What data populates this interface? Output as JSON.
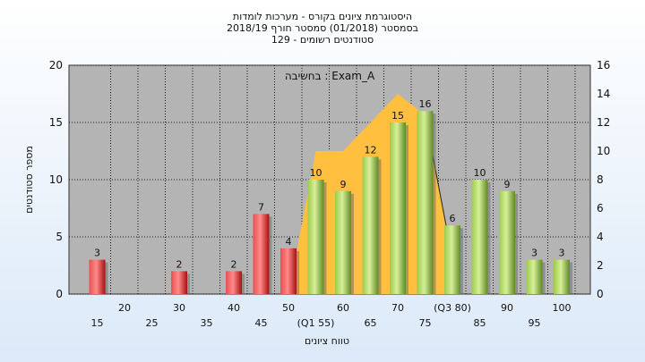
{
  "chart_data": {
    "type": "bar",
    "title": "היסטוגרמת ציונים בקורס - מערכות לומדות",
    "subtitle": "בסמסטר  (01/2018)  סמסטר חורף 2018/19",
    "subtitle2": "סטודנטים רשומים - 129",
    "annotation": "בחשיבה : Exam_A",
    "xlabel": "טווח ציונים",
    "ylabel": "מספר סטודנטים",
    "ylim": [
      0,
      20
    ],
    "y2lim": [
      0,
      16
    ],
    "yticks": [
      0,
      5,
      10,
      15,
      20
    ],
    "y2ticks": [
      0,
      2,
      4,
      6,
      8,
      10,
      12,
      14,
      16
    ],
    "x_labels_row1": [
      "20",
      "30",
      "40",
      "50",
      "60",
      "70",
      "(Q3 80)",
      "90",
      "100"
    ],
    "x_labels_row2": [
      "15",
      "25",
      "35",
      "45",
      "(Q1 55)",
      "65",
      "75",
      "85",
      "95"
    ],
    "bins": [
      15,
      20,
      25,
      30,
      35,
      40,
      45,
      50,
      55,
      60,
      65,
      70,
      75,
      80,
      85,
      90,
      95,
      100
    ],
    "values": [
      3,
      null,
      null,
      2,
      null,
      2,
      7,
      4,
      10,
      9,
      12,
      15,
      16,
      6,
      10,
      9,
      3,
      3
    ],
    "bar_colors": [
      "red",
      "red",
      "red",
      "red",
      "red",
      "red",
      "red",
      "red",
      "green",
      "green",
      "green",
      "green",
      "green",
      "green",
      "green",
      "green",
      "green",
      "green"
    ],
    "distribution_curve": {
      "x": [
        50,
        55,
        60,
        65,
        70,
        75,
        80
      ],
      "y": [
        0,
        10,
        10,
        12,
        14,
        12.5,
        2.5
      ]
    },
    "colors": {
      "plot_bg": "#b4b4b4",
      "fail_bar": "#d42020",
      "pass_bar": "#93c13c",
      "curve_fill": "#ffbf3f"
    },
    "grid": true
  }
}
